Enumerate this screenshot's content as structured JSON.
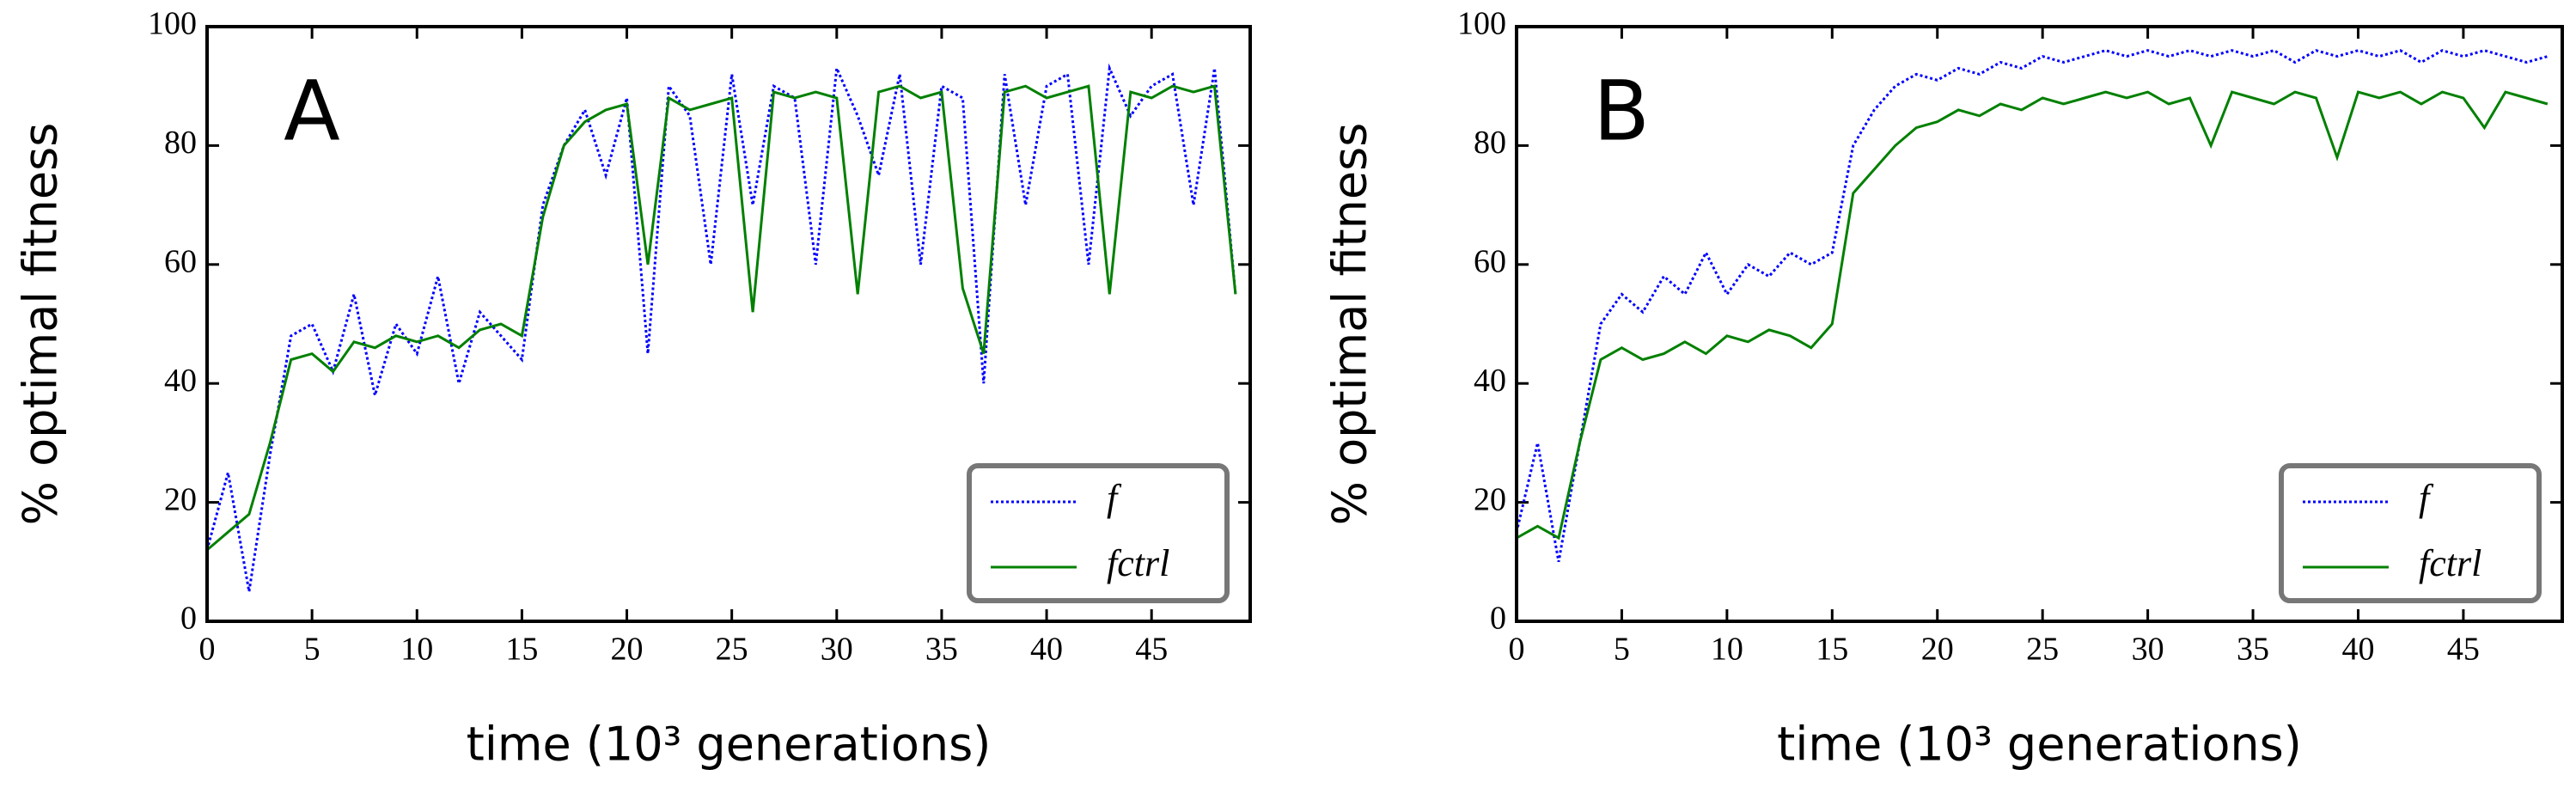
{
  "chart_data": [
    {
      "type": "line",
      "panel_label": "A",
      "xlabel": "time (10³ generations)",
      "ylabel": "% optimal fitness",
      "xlim": [
        0,
        49.7
      ],
      "xticks": [
        0,
        5,
        10,
        15,
        20,
        25,
        30,
        35,
        40,
        45
      ],
      "ylim": [
        0,
        100
      ],
      "yticks": [
        0,
        20,
        40,
        60,
        80,
        100
      ],
      "legend": "lower right",
      "x": [
        0,
        1,
        2,
        3,
        4,
        5,
        6,
        7,
        8,
        9,
        10,
        11,
        12,
        13,
        14,
        15,
        16,
        17,
        18,
        19,
        20,
        21,
        22,
        23,
        24,
        25,
        26,
        27,
        28,
        29,
        30,
        31,
        32,
        33,
        34,
        35,
        36,
        37,
        38,
        39,
        40,
        41,
        42,
        43,
        44,
        45,
        46,
        47,
        48,
        49
      ],
      "series": [
        {
          "name": "f",
          "color": "#0000ff",
          "linestyle": "dotted",
          "values": [
            12,
            25,
            5,
            28,
            48,
            50,
            42,
            55,
            38,
            50,
            45,
            58,
            40,
            52,
            48,
            44,
            70,
            80,
            86,
            75,
            88,
            45,
            90,
            85,
            60,
            92,
            70,
            90,
            88,
            60,
            93,
            85,
            75,
            92,
            60,
            90,
            88,
            40,
            92,
            70,
            90,
            92,
            60,
            93,
            85,
            90,
            92,
            70,
            93,
            55
          ]
        },
        {
          "name": "fctrl",
          "color": "#008000",
          "linestyle": "solid",
          "values": [
            12,
            15,
            18,
            30,
            44,
            45,
            42,
            47,
            46,
            48,
            47,
            48,
            46,
            49,
            50,
            48,
            68,
            80,
            84,
            86,
            87,
            60,
            88,
            86,
            87,
            88,
            52,
            89,
            88,
            89,
            88,
            55,
            89,
            90,
            88,
            89,
            56,
            45,
            89,
            90,
            88,
            89,
            90,
            55,
            89,
            88,
            90,
            89,
            90,
            55
          ]
        }
      ]
    },
    {
      "type": "line",
      "panel_label": "B",
      "xlabel": "time (10³ generations)",
      "ylabel": "% optimal fitness",
      "xlim": [
        0,
        49.7
      ],
      "xticks": [
        0,
        5,
        10,
        15,
        20,
        25,
        30,
        35,
        40,
        45
      ],
      "ylim": [
        0,
        100
      ],
      "yticks": [
        0,
        20,
        40,
        60,
        80,
        100
      ],
      "legend": "lower right",
      "x": [
        0,
        1,
        2,
        3,
        4,
        5,
        6,
        7,
        8,
        9,
        10,
        11,
        12,
        13,
        14,
        15,
        16,
        17,
        18,
        19,
        20,
        21,
        22,
        23,
        24,
        25,
        26,
        27,
        28,
        29,
        30,
        31,
        32,
        33,
        34,
        35,
        36,
        37,
        38,
        39,
        40,
        41,
        42,
        43,
        44,
        45,
        46,
        47,
        48,
        49
      ],
      "series": [
        {
          "name": "f",
          "color": "#0000ff",
          "linestyle": "dotted",
          "values": [
            15,
            30,
            10,
            30,
            50,
            55,
            52,
            58,
            55,
            62,
            55,
            60,
            58,
            62,
            60,
            62,
            80,
            86,
            90,
            92,
            91,
            93,
            92,
            94,
            93,
            95,
            94,
            95,
            96,
            95,
            96,
            95,
            96,
            95,
            96,
            95,
            96,
            94,
            96,
            95,
            96,
            95,
            96,
            94,
            96,
            95,
            96,
            95,
            94,
            95
          ]
        },
        {
          "name": "fctrl",
          "color": "#008000",
          "linestyle": "solid",
          "values": [
            14,
            16,
            14,
            30,
            44,
            46,
            44,
            45,
            47,
            45,
            48,
            47,
            49,
            48,
            46,
            50,
            72,
            76,
            80,
            83,
            84,
            86,
            85,
            87,
            86,
            88,
            87,
            88,
            89,
            88,
            89,
            87,
            88,
            80,
            89,
            88,
            87,
            89,
            88,
            78,
            89,
            88,
            89,
            87,
            89,
            88,
            83,
            89,
            88,
            87
          ]
        }
      ]
    }
  ]
}
